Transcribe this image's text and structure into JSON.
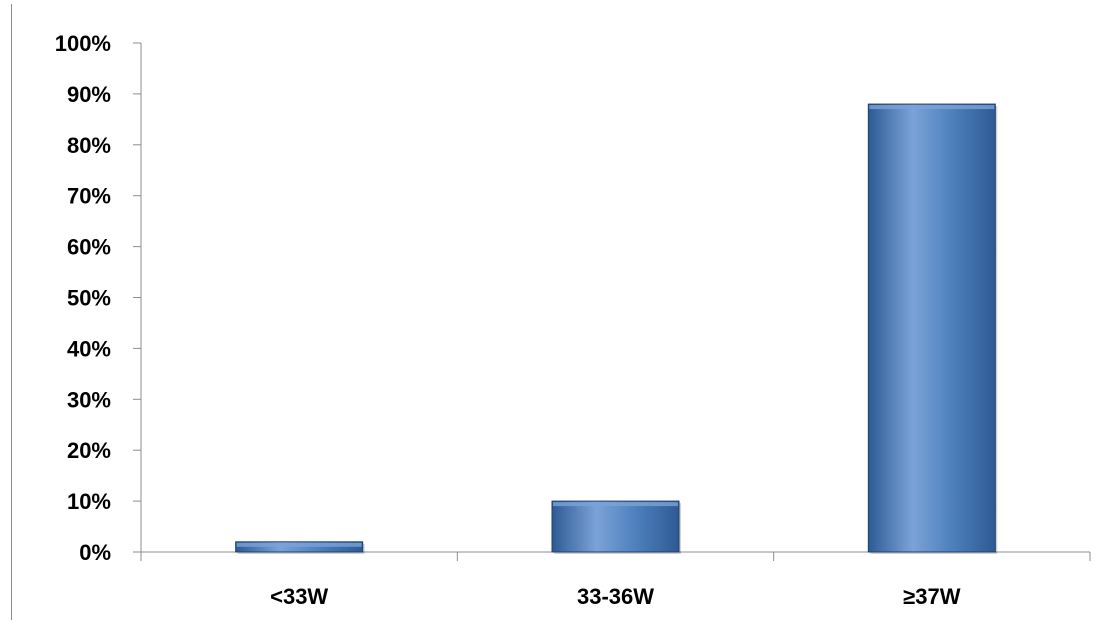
{
  "chart_data": {
    "type": "bar",
    "title": "",
    "xlabel": "",
    "ylabel": "",
    "categories": [
      "<33W",
      "33-36W",
      "≥37W"
    ],
    "values": [
      2,
      10,
      88
    ],
    "ylim": [
      0,
      100
    ],
    "y_ticks": [
      0,
      10,
      20,
      30,
      40,
      50,
      60,
      70,
      80,
      90,
      100
    ],
    "y_tick_labels": [
      "0%",
      "10%",
      "20%",
      "30%",
      "40%",
      "50%",
      "60%",
      "70%",
      "80%",
      "90%",
      "100%"
    ],
    "grid": false,
    "legend": "none",
    "colors": {
      "bar_fill": "#4f81bd",
      "bar_light": "#7aa3d8",
      "bar_dark": "#2e5a94",
      "bar_edge": "#1f3f6b",
      "axis": "#8c8c8c"
    }
  }
}
